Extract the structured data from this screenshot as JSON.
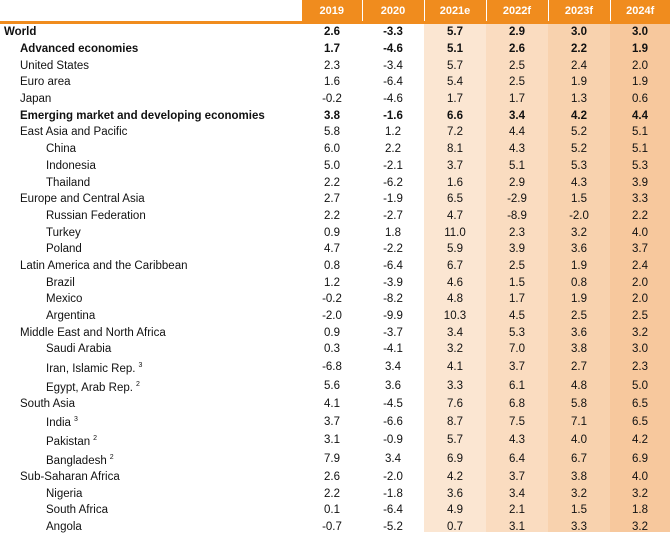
{
  "table": {
    "columns": [
      "2019",
      "2020",
      "2021e",
      "2022f",
      "2023f",
      "2024f"
    ],
    "rows": [
      {
        "label": "World",
        "note": "",
        "level": 0,
        "bold": true,
        "values": [
          "2.6",
          "-3.3",
          "5.7",
          "2.9",
          "3.0",
          "3.0"
        ]
      },
      {
        "label": "Advanced economies",
        "note": "",
        "level": 1,
        "bold": true,
        "values": [
          "1.7",
          "-4.6",
          "5.1",
          "2.6",
          "2.2",
          "1.9"
        ]
      },
      {
        "label": "United States",
        "note": "",
        "level": 1,
        "bold": false,
        "values": [
          "2.3",
          "-3.4",
          "5.7",
          "2.5",
          "2.4",
          "2.0"
        ]
      },
      {
        "label": "Euro area",
        "note": "",
        "level": 1,
        "bold": false,
        "values": [
          "1.6",
          "-6.4",
          "5.4",
          "2.5",
          "1.9",
          "1.9"
        ]
      },
      {
        "label": "Japan",
        "note": "",
        "level": 1,
        "bold": false,
        "values": [
          "-0.2",
          "-4.6",
          "1.7",
          "1.7",
          "1.3",
          "0.6"
        ]
      },
      {
        "label": "Emerging market and developing economies",
        "note": "",
        "level": 1,
        "bold": true,
        "values": [
          "3.8",
          "-1.6",
          "6.6",
          "3.4",
          "4.2",
          "4.4"
        ]
      },
      {
        "label": "East Asia and Pacific",
        "note": "",
        "level": 1,
        "bold": false,
        "values": [
          "5.8",
          "1.2",
          "7.2",
          "4.4",
          "5.2",
          "5.1"
        ]
      },
      {
        "label": "China",
        "note": "",
        "level": 2,
        "bold": false,
        "values": [
          "6.0",
          "2.2",
          "8.1",
          "4.3",
          "5.2",
          "5.1"
        ]
      },
      {
        "label": "Indonesia",
        "note": "",
        "level": 2,
        "bold": false,
        "values": [
          "5.0",
          "-2.1",
          "3.7",
          "5.1",
          "5.3",
          "5.3"
        ]
      },
      {
        "label": "Thailand",
        "note": "",
        "level": 2,
        "bold": false,
        "values": [
          "2.2",
          "-6.2",
          "1.6",
          "2.9",
          "4.3",
          "3.9"
        ]
      },
      {
        "label": "Europe and Central Asia",
        "note": "",
        "level": 1,
        "bold": false,
        "values": [
          "2.7",
          "-1.9",
          "6.5",
          "-2.9",
          "1.5",
          "3.3"
        ]
      },
      {
        "label": "Russian Federation",
        "note": "",
        "level": 2,
        "bold": false,
        "values": [
          "2.2",
          "-2.7",
          "4.7",
          "-8.9",
          "-2.0",
          "2.2"
        ]
      },
      {
        "label": "Turkey",
        "note": "",
        "level": 2,
        "bold": false,
        "values": [
          "0.9",
          "1.8",
          "11.0",
          "2.3",
          "3.2",
          "4.0"
        ]
      },
      {
        "label": "Poland",
        "note": "",
        "level": 2,
        "bold": false,
        "values": [
          "4.7",
          "-2.2",
          "5.9",
          "3.9",
          "3.6",
          "3.7"
        ]
      },
      {
        "label": "Latin America and the Caribbean",
        "note": "",
        "level": 1,
        "bold": false,
        "values": [
          "0.8",
          "-6.4",
          "6.7",
          "2.5",
          "1.9",
          "2.4"
        ]
      },
      {
        "label": "Brazil",
        "note": "",
        "level": 2,
        "bold": false,
        "values": [
          "1.2",
          "-3.9",
          "4.6",
          "1.5",
          "0.8",
          "2.0"
        ]
      },
      {
        "label": "Mexico",
        "note": "",
        "level": 2,
        "bold": false,
        "values": [
          "-0.2",
          "-8.2",
          "4.8",
          "1.7",
          "1.9",
          "2.0"
        ]
      },
      {
        "label": "Argentina",
        "note": "",
        "level": 2,
        "bold": false,
        "values": [
          "-2.0",
          "-9.9",
          "10.3",
          "4.5",
          "2.5",
          "2.5"
        ]
      },
      {
        "label": "Middle East and North Africa",
        "note": "",
        "level": 1,
        "bold": false,
        "values": [
          "0.9",
          "-3.7",
          "3.4",
          "5.3",
          "3.6",
          "3.2"
        ]
      },
      {
        "label": "Saudi Arabia",
        "note": "",
        "level": 2,
        "bold": false,
        "values": [
          "0.3",
          "-4.1",
          "3.2",
          "7.0",
          "3.8",
          "3.0"
        ]
      },
      {
        "label": "Iran, Islamic Rep.",
        "note": "3",
        "level": 2,
        "bold": false,
        "values": [
          "-6.8",
          "3.4",
          "4.1",
          "3.7",
          "2.7",
          "2.3"
        ]
      },
      {
        "label": "Egypt, Arab Rep.",
        "note": "2",
        "level": 2,
        "bold": false,
        "values": [
          "5.6",
          "3.6",
          "3.3",
          "6.1",
          "4.8",
          "5.0"
        ]
      },
      {
        "label": "South Asia",
        "note": "",
        "level": 1,
        "bold": false,
        "values": [
          "4.1",
          "-4.5",
          "7.6",
          "6.8",
          "5.8",
          "6.5"
        ]
      },
      {
        "label": "India",
        "note": "3",
        "level": 2,
        "bold": false,
        "values": [
          "3.7",
          "-6.6",
          "8.7",
          "7.5",
          "7.1",
          "6.5"
        ]
      },
      {
        "label": "Pakistan",
        "note": "2",
        "level": 2,
        "bold": false,
        "values": [
          "3.1",
          "-0.9",
          "5.7",
          "4.3",
          "4.0",
          "4.2"
        ]
      },
      {
        "label": "Bangladesh",
        "note": "2",
        "level": 2,
        "bold": false,
        "values": [
          "7.9",
          "3.4",
          "6.9",
          "6.4",
          "6.7",
          "6.9"
        ]
      },
      {
        "label": "Sub-Saharan Africa",
        "note": "",
        "level": 1,
        "bold": false,
        "values": [
          "2.6",
          "-2.0",
          "4.2",
          "3.7",
          "3.8",
          "4.0"
        ]
      },
      {
        "label": "Nigeria",
        "note": "",
        "level": 2,
        "bold": false,
        "values": [
          "2.2",
          "-1.8",
          "3.6",
          "3.4",
          "3.2",
          "3.2"
        ]
      },
      {
        "label": "South Africa",
        "note": "",
        "level": 2,
        "bold": false,
        "values": [
          "0.1",
          "-6.4",
          "4.9",
          "2.1",
          "1.5",
          "1.8"
        ]
      },
      {
        "label": "Angola",
        "note": "",
        "level": 2,
        "bold": false,
        "values": [
          "-0.7",
          "-5.2",
          "0.7",
          "3.1",
          "3.3",
          "3.2"
        ]
      }
    ]
  },
  "colors": {
    "header_bg": "#f08c1e",
    "header_text": "#ffffff",
    "forecast_shades": [
      "#fbe6d2",
      "#fadcc0",
      "#f8d2ae",
      "#f7c89d"
    ]
  }
}
